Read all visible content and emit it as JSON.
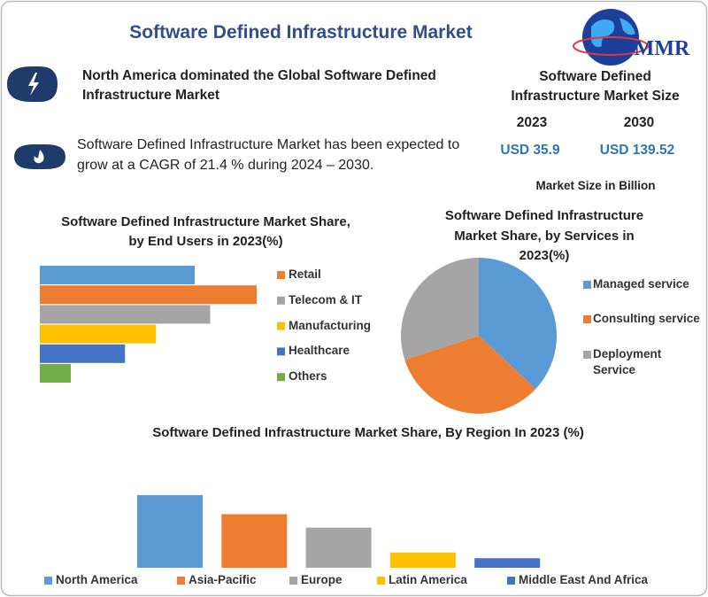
{
  "header": {
    "title": "Software Defined Infrastructure Market",
    "logo": "MMR"
  },
  "highlights": [
    "North America dominated the Global Software Defined Infrastructure Market",
    "Software Defined Infrastructure Market has been expected to grow at a CAGR of 21.4 % during 2024 – 2030."
  ],
  "market_size": {
    "title": "Software Defined Infrastructure Market Size",
    "years": [
      "2023",
      "2030"
    ],
    "values": [
      "USD 35.9",
      "USD 139.52"
    ],
    "note": "Market Size in Billion"
  },
  "chart_data": [
    {
      "type": "bar",
      "orientation": "horizontal",
      "title": "Software Defined Infrastructure Market Share, by End Users in 2023(%)",
      "categories": [
        null,
        "Retail",
        "Telecom & IT",
        "Manufacturing",
        "Healthcare",
        "Others"
      ],
      "values": [
        20,
        28,
        22,
        15,
        11,
        4
      ],
      "colors": [
        "#5b9bd5",
        "#ed7d31",
        "#a5a5a5",
        "#ffc000",
        "#4472c4",
        "#70ad47"
      ]
    },
    {
      "type": "pie",
      "title": "Software Defined Infrastructure Market Share, by Services  in 2023(%)",
      "categories": [
        "Managed service",
        "Consulting service",
        "Deployment Service"
      ],
      "values": [
        37,
        33,
        30
      ],
      "colors": [
        "#5b9bd5",
        "#ed7d31",
        "#a5a5a5"
      ]
    },
    {
      "type": "bar",
      "orientation": "vertical",
      "title": "Software Defined Infrastructure Market Share, By Region In 2023 (%)",
      "categories": [
        "North America",
        "Asia-Pacific",
        "Europe",
        "Latin America",
        "Middle East And Africa"
      ],
      "values": [
        38,
        28,
        21,
        8,
        5
      ],
      "colors": [
        "#5b9bd5",
        "#ed7d31",
        "#a5a5a5",
        "#ffc000",
        "#4472c4"
      ]
    }
  ]
}
